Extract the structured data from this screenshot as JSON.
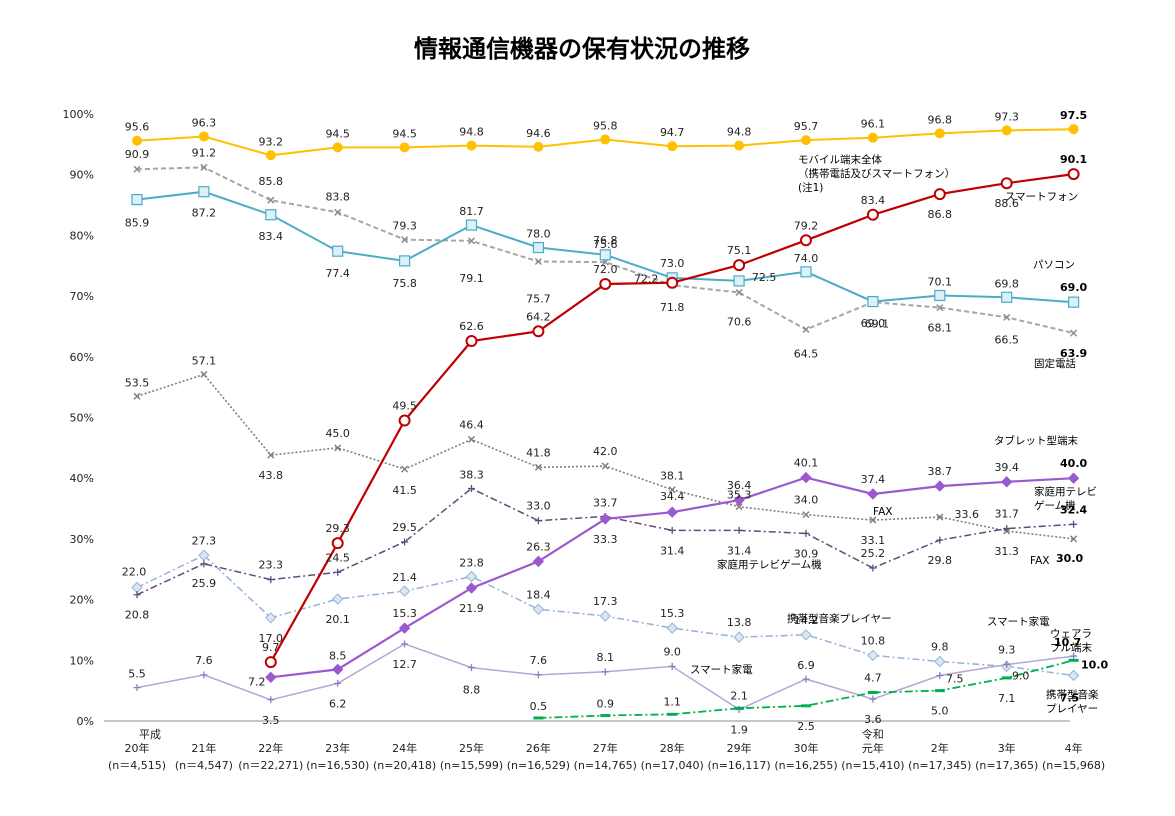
{
  "chart_data": {
    "type": "line",
    "title": "情報通信機器の保有状況の推移",
    "ylim": [
      0,
      100
    ],
    "y_ticks": [
      "0%",
      "10%",
      "20%",
      "30%",
      "40%",
      "50%",
      "60%",
      "70%",
      "80%",
      "90%",
      "100%"
    ],
    "grid": false,
    "era_labels": {
      "heisei": "平成",
      "reiwa": "令和"
    },
    "categories": [
      {
        "year": "20年",
        "n": "(n＝4,515)"
      },
      {
        "year": "21年",
        "n": "(n＝4,547)"
      },
      {
        "year": "22年",
        "n": "(n＝22,271)"
      },
      {
        "year": "23年",
        "n": "(n=16,530)"
      },
      {
        "year": "24年",
        "n": "(n=20,418)"
      },
      {
        "year": "25年",
        "n": "(n=15,599)"
      },
      {
        "year": "26年",
        "n": "(n=16,529)"
      },
      {
        "year": "27年",
        "n": "(n=14,765)"
      },
      {
        "year": "28年",
        "n": "(n=17,040)"
      },
      {
        "year": "29年",
        "n": "(n=16,117)"
      },
      {
        "year": "30年",
        "n": "(n=16,255)"
      },
      {
        "year": "元年",
        "n": "(n=15,410)"
      },
      {
        "year": "2年",
        "n": "(n=17,345)"
      },
      {
        "year": "3年",
        "n": "(n=17,365)"
      },
      {
        "year": "4年",
        "n": "(n=15,968)"
      }
    ],
    "series": [
      {
        "key": "mobile",
        "name": "モバイル端末全体",
        "name_sub": [
          "（携帯電話及びスマートフォン）",
          "(注1)"
        ],
        "color": "#FFC000",
        "values": [
          95.6,
          96.3,
          93.2,
          94.5,
          94.5,
          94.8,
          94.6,
          95.8,
          94.7,
          94.8,
          95.7,
          96.1,
          96.8,
          97.3,
          97.5
        ]
      },
      {
        "key": "fixed",
        "name": "固定電話",
        "color": "#A6A6A6",
        "values": [
          90.9,
          91.2,
          85.8,
          83.8,
          79.3,
          79.1,
          75.7,
          75.6,
          71.8,
          70.6,
          64.5,
          69.0,
          68.1,
          66.5,
          63.9
        ]
      },
      {
        "key": "pc",
        "name": "パソコン",
        "color": "#4BACC6",
        "values": [
          85.9,
          87.2,
          83.4,
          77.4,
          75.8,
          81.7,
          78.0,
          76.8,
          73.0,
          72.5,
          74.0,
          69.1,
          70.1,
          69.8,
          69.0
        ]
      },
      {
        "key": "smartphone",
        "name": "スマートフォン",
        "color": "#C00000",
        "values": [
          null,
          null,
          9.7,
          29.3,
          49.5,
          62.6,
          64.2,
          72.0,
          72.2,
          75.1,
          79.2,
          83.4,
          86.8,
          88.6,
          90.1
        ]
      },
      {
        "key": "fax",
        "name": "FAX",
        "color": "#7F7F7F",
        "values": [
          53.5,
          57.1,
          43.8,
          45.0,
          41.5,
          46.4,
          41.8,
          42.0,
          38.1,
          35.3,
          34.0,
          33.1,
          33.6,
          31.3,
          30.0
        ]
      },
      {
        "key": "tablet",
        "name": "タブレット型端末",
        "color": "#9B59D0",
        "values": [
          null,
          null,
          7.2,
          8.5,
          15.3,
          21.9,
          26.3,
          33.3,
          34.4,
          36.4,
          40.1,
          37.4,
          38.7,
          39.4,
          40.0
        ]
      },
      {
        "key": "game",
        "name": "家庭用テレビゲーム機",
        "name_lines": [
          "家庭用テレビ",
          "ゲーム機"
        ],
        "color": "#604A7B",
        "values": [
          20.8,
          25.9,
          23.3,
          24.5,
          29.5,
          38.3,
          33.0,
          33.7,
          31.4,
          31.4,
          30.9,
          25.2,
          29.8,
          31.7,
          32.4
        ]
      },
      {
        "key": "music",
        "name": "携帯型音楽プレイヤー",
        "name_lines": [
          "携帯型音楽",
          "プレイヤー"
        ],
        "color": "#95B3D7",
        "values": [
          22.0,
          27.3,
          17.0,
          20.1,
          21.4,
          23.8,
          18.4,
          17.3,
          15.3,
          13.8,
          14.2,
          10.8,
          9.8,
          9.0,
          7.5
        ]
      },
      {
        "key": "smarthome",
        "name": "スマート家電",
        "color": "#B4A7D6",
        "values": [
          5.5,
          7.6,
          3.5,
          6.2,
          12.7,
          8.8,
          7.6,
          8.1,
          9.0,
          1.9,
          6.9,
          3.6,
          7.5,
          9.3,
          10.7
        ]
      },
      {
        "key": "wearable",
        "name": "ウェアラブル端末",
        "name_lines": [
          "ウェアラ",
          "ブル端末"
        ],
        "color": "#00B050",
        "values": [
          null,
          null,
          null,
          null,
          null,
          null,
          0.5,
          0.9,
          1.1,
          2.1,
          2.5,
          4.7,
          5.0,
          7.1,
          10.0
        ]
      }
    ]
  }
}
